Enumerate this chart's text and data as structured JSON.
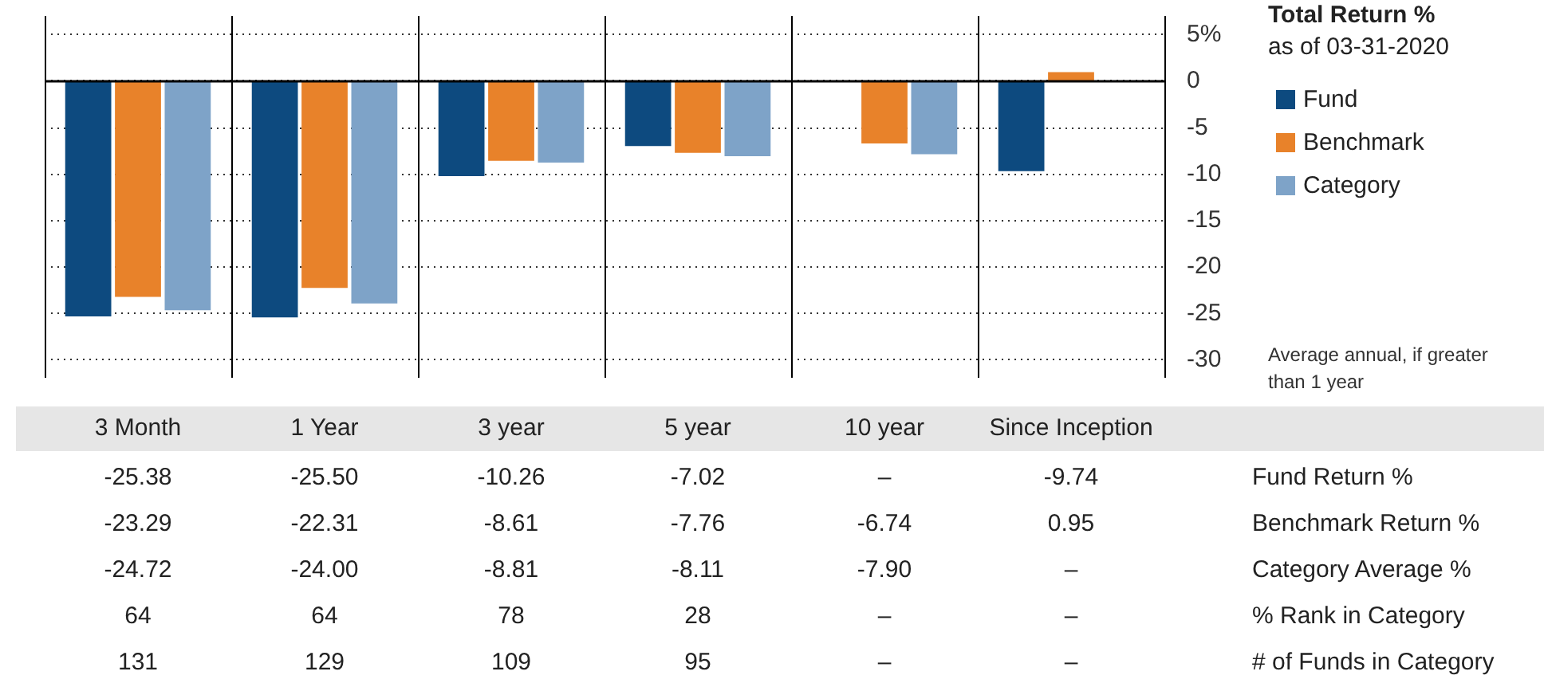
{
  "chart_data": {
    "type": "bar",
    "legend_title": "Total Return %",
    "subtitle": "as of 03-31-2020",
    "categories": [
      "3 Month",
      "1 Year",
      "3 year",
      "5 year",
      "10 year",
      "Since Inception"
    ],
    "series": [
      {
        "name": "Fund",
        "color": "#0d4a7f",
        "values": [
          -25.38,
          -25.5,
          -10.26,
          -7.02,
          null,
          -9.74
        ],
        "value_labels": [
          "-25.38",
          "-25.50",
          "-10.26",
          "-7.02",
          "–",
          "-9.74"
        ]
      },
      {
        "name": "Benchmark",
        "color": "#e8822a",
        "values": [
          -23.29,
          -22.31,
          -8.61,
          -7.76,
          -6.74,
          0.95
        ],
        "value_labels": [
          "-23.29",
          "-22.31",
          "-8.61",
          "-7.76",
          "-6.74",
          "0.95"
        ]
      },
      {
        "name": "Category",
        "color": "#7ea3c8",
        "values": [
          -24.72,
          -24.0,
          -8.81,
          -8.11,
          -7.9,
          null
        ],
        "value_labels": [
          "-24.72",
          "-24.00",
          "-8.81",
          "-8.11",
          "-7.90",
          "–"
        ]
      }
    ],
    "ylim": [
      -32,
      7
    ],
    "yticks": [
      {
        "value": 5,
        "label": "5%"
      },
      0,
      -5,
      -10,
      -15,
      -20,
      -25,
      -30
    ],
    "grid": true,
    "legend": "right",
    "annotations": [
      "Average annual, if greater than 1 year",
      "Fund Return %",
      "Benchmark Return %",
      "Category Average %",
      "% Rank in Category",
      "# of Funds in Category",
      "64",
      "64",
      "78",
      "28",
      "–",
      "–",
      "131",
      "129",
      "109",
      "95",
      "–",
      "–"
    ]
  }
}
